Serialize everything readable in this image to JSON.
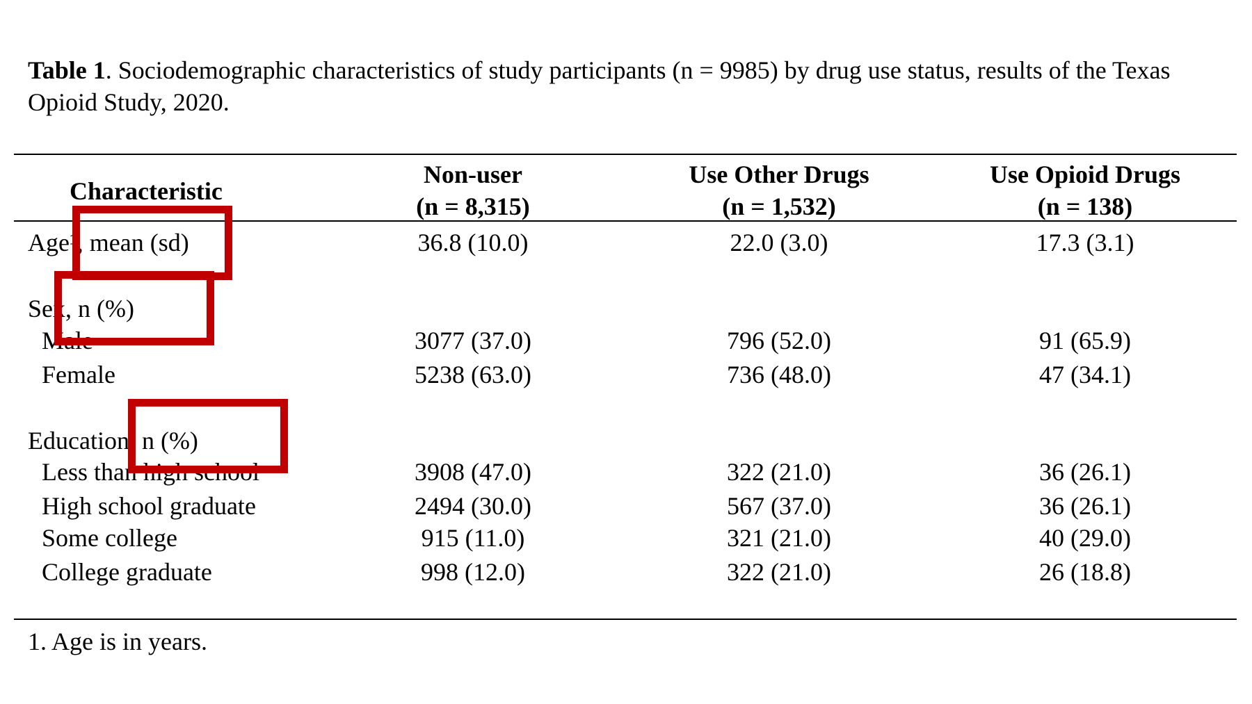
{
  "caption": {
    "label": "Table 1",
    "text": ". Sociodemographic characteristics of study participants (n = 9985) by drug use status, results of the Texas Opioid Study, 2020."
  },
  "headers": {
    "characteristic": "Characteristic",
    "col1_title": "Non-user",
    "col1_n": "(n = 8,315)",
    "col2_title": "Use Other Drugs",
    "col2_n": "(n = 1,532)",
    "col3_title": "Use Opioid Drugs",
    "col3_n": "(n = 138)"
  },
  "rows": [
    {
      "label": "Age¹, mean (sd)",
      "v1": "36.8 (10.0)",
      "v2": "22.0 (3.0)",
      "v3": "17.3 (3.1)"
    },
    {
      "label": "Sex, n (%)",
      "v1": "",
      "v2": "",
      "v3": ""
    },
    {
      "label": "Male",
      "v1": "3077 (37.0)",
      "v2": "796 (52.0)",
      "v3": "91 (65.9)"
    },
    {
      "label": "Female",
      "v1": "5238 (63.0)",
      "v2": "736 (48.0)",
      "v3": "47 (34.1)"
    },
    {
      "label": "Education, n (%)",
      "v1": "",
      "v2": "",
      "v3": ""
    },
    {
      "label": "Less than high school",
      "v1": "3908 (47.0)",
      "v2": "322 (21.0)",
      "v3": "36 (26.1)"
    },
    {
      "label": "High school graduate",
      "v1": "2494 (30.0)",
      "v2": "567 (37.0)",
      "v3": "36 (26.1)"
    },
    {
      "label": "Some college",
      "v1": "915 (11.0)",
      "v2": "321 (21.0)",
      "v3": "40 (29.0)"
    },
    {
      "label": "College graduate",
      "v1": "998 (12.0)",
      "v2": "322 (21.0)",
      "v3": "26 (18.8)"
    }
  ],
  "footnote": "1. Age is in years.",
  "colors": {
    "highlight_box": "#c00000"
  }
}
